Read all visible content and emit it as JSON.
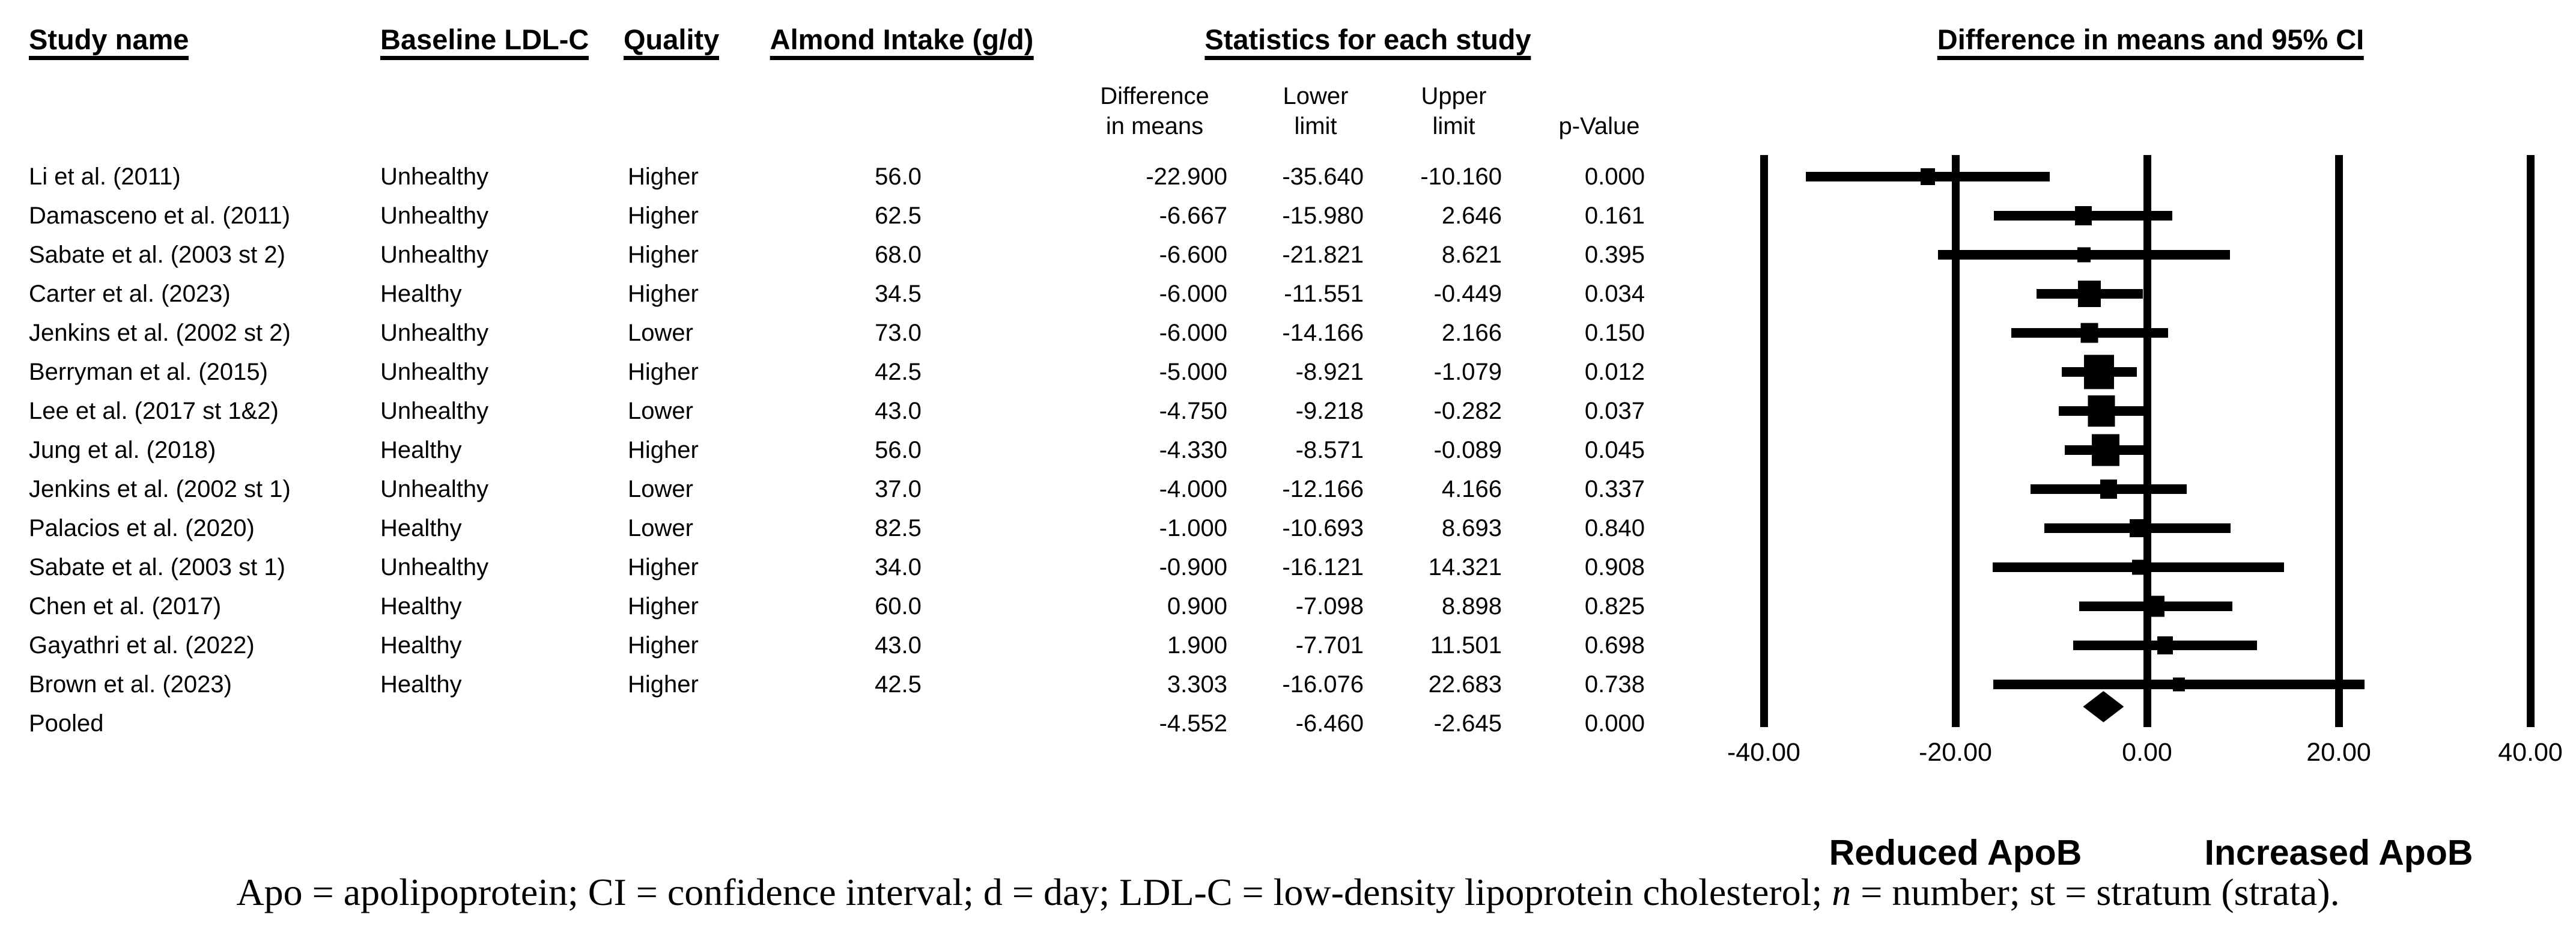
{
  "table": {
    "headers": {
      "study": "Study name",
      "baseline": "Baseline LDL-C",
      "quality": "Quality",
      "intake": "Almond Intake (g/d)",
      "statistics": "Statistics for each study"
    },
    "sub_headers": {
      "diff_line1": "Difference",
      "diff_line2": "in means",
      "lower_line1": "Lower",
      "lower_line2": "limit",
      "upper_line1": "Upper",
      "upper_line2": "limit",
      "p": "p-Value"
    }
  },
  "chart_data": {
    "type": "forest",
    "title": "Difference in means and 95% CI",
    "xlim": [
      -40,
      40
    ],
    "x_ticks": [
      -40,
      -20,
      0,
      20,
      40
    ],
    "x_tick_labels": [
      "-40.00",
      "-20.00",
      "0.00",
      "20.00",
      "40.00"
    ],
    "left_label": "Reduced ApoB",
    "right_label": "Increased ApoB",
    "rows": [
      {
        "study": "Li et al. (2011)",
        "baseline": "Unhealthy",
        "quality": "Higher",
        "intake": "56.0",
        "diff": "-22.900",
        "lower": "-35.640",
        "upper": "-10.160",
        "p": "0.000",
        "marker_w": 24
      },
      {
        "study": "Damasceno et al. (2011)",
        "baseline": "Unhealthy",
        "quality": "Higher",
        "intake": "62.5",
        "diff": "-6.667",
        "lower": "-15.980",
        "upper": "2.646",
        "p": "0.161",
        "marker_w": 28
      },
      {
        "study": "Sabate et al. (2003 st 2)",
        "baseline": "Unhealthy",
        "quality": "Higher",
        "intake": "68.0",
        "diff": "-6.600",
        "lower": "-21.821",
        "upper": "8.621",
        "p": "0.395",
        "marker_w": 22
      },
      {
        "study": "Carter et al. (2023)",
        "baseline": "Healthy",
        "quality": "Higher",
        "intake": "34.5",
        "diff": "-6.000",
        "lower": "-11.551",
        "upper": "-0.449",
        "p": "0.034",
        "marker_w": 38
      },
      {
        "study": "Jenkins et al. (2002 st 2)",
        "baseline": "Unhealthy",
        "quality": "Lower",
        "intake": "73.0",
        "diff": "-6.000",
        "lower": "-14.166",
        "upper": "2.166",
        "p": "0.150",
        "marker_w": 29
      },
      {
        "study": "Berryman et al. (2015)",
        "baseline": "Unhealthy",
        "quality": "Higher",
        "intake": "42.5",
        "diff": "-5.000",
        "lower": "-8.921",
        "upper": "-1.079",
        "p": "0.012",
        "marker_w": 50
      },
      {
        "study": "Lee et al. (2017 st 1&2)",
        "baseline": "Unhealthy",
        "quality": "Lower",
        "intake": "43.0",
        "diff": "-4.750",
        "lower": "-9.218",
        "upper": "-0.282",
        "p": "0.037",
        "marker_w": 45
      },
      {
        "study": "Jung et al. (2018)",
        "baseline": "Healthy",
        "quality": "Higher",
        "intake": "56.0",
        "diff": "-4.330",
        "lower": "-8.571",
        "upper": "-0.089",
        "p": "0.045",
        "marker_w": 46
      },
      {
        "study": "Jenkins et al. (2002 st 1)",
        "baseline": "Unhealthy",
        "quality": "Lower",
        "intake": "37.0",
        "diff": "-4.000",
        "lower": "-12.166",
        "upper": "4.166",
        "p": "0.337",
        "marker_w": 28
      },
      {
        "study": "Palacios et al. (2020)",
        "baseline": "Healthy",
        "quality": "Lower",
        "intake": "82.5",
        "diff": "-1.000",
        "lower": "-10.693",
        "upper": "8.693",
        "p": "0.840",
        "marker_w": 26
      },
      {
        "study": "Sabate et al. (2003 st 1)",
        "baseline": "Unhealthy",
        "quality": "Higher",
        "intake": "34.0",
        "diff": "-0.900",
        "lower": "-16.121",
        "upper": "14.321",
        "p": "0.908",
        "marker_w": 22
      },
      {
        "study": "Chen et al. (2017)",
        "baseline": "Healthy",
        "quality": "Higher",
        "intake": "60.0",
        "diff": "0.900",
        "lower": "-7.098",
        "upper": "8.898",
        "p": "0.825",
        "marker_w": 30
      },
      {
        "study": "Gayathri et al. (2022)",
        "baseline": "Healthy",
        "quality": "Higher",
        "intake": "43.0",
        "diff": "1.900",
        "lower": "-7.701",
        "upper": "11.501",
        "p": "0.698",
        "marker_w": 26
      },
      {
        "study": "Brown et al. (2023)",
        "baseline": "Healthy",
        "quality": "Higher",
        "intake": "42.5",
        "diff": "3.303",
        "lower": "-16.076",
        "upper": "22.683",
        "p": "0.738",
        "marker_w": 20
      },
      {
        "study": "Pooled",
        "baseline": "",
        "quality": "",
        "intake": "",
        "diff": "-4.552",
        "lower": "-6.460",
        "upper": "-2.645",
        "p": "0.000",
        "pooled": true
      }
    ]
  },
  "footnote": {
    "part1": "Apo = apolipoprotein; CI = confidence interval; d = day; LDL-C = low-density lipoprotein cholesterol; ",
    "italic_n": "n",
    "part2": " = number; st = stratum (strata)."
  },
  "colors": {
    "ink": "#000000",
    "background": "#ffffff"
  }
}
